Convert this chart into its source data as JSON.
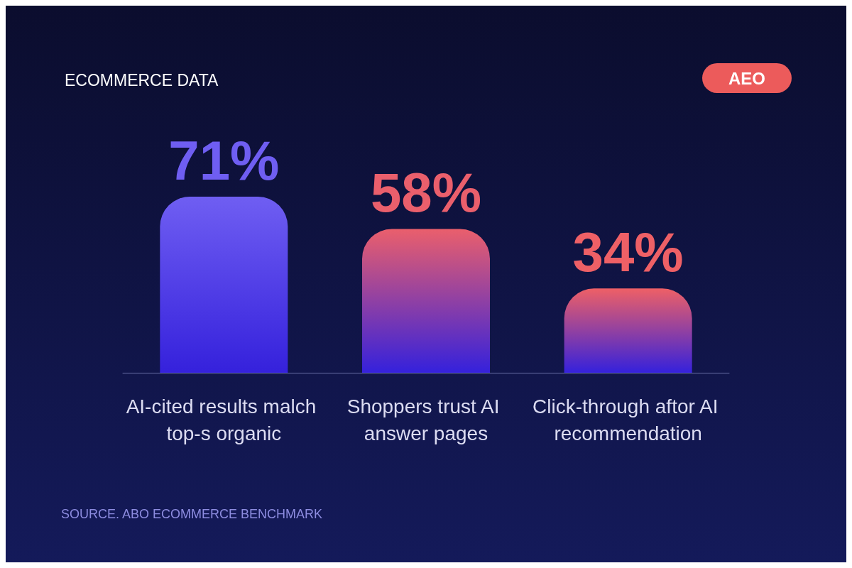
{
  "chart_data": {
    "type": "bar",
    "title": "ECOMMERCE DATA",
    "subtitle": "AEO",
    "categories": [
      "AI-cited results malch top-s organic",
      "Shoppers trust AI answer pages",
      "Click-through aftor AI recommendation"
    ],
    "values": [
      71,
      58,
      34
    ],
    "colors": [
      "#6f5ef2",
      "#ea5f6c",
      "#ee6066"
    ],
    "value_labels": [
      "71%",
      "58%",
      "34%"
    ],
    "annotations": [
      "SOURCE. ABO ECOMMERCE BENCHMARK"
    ]
  }
}
